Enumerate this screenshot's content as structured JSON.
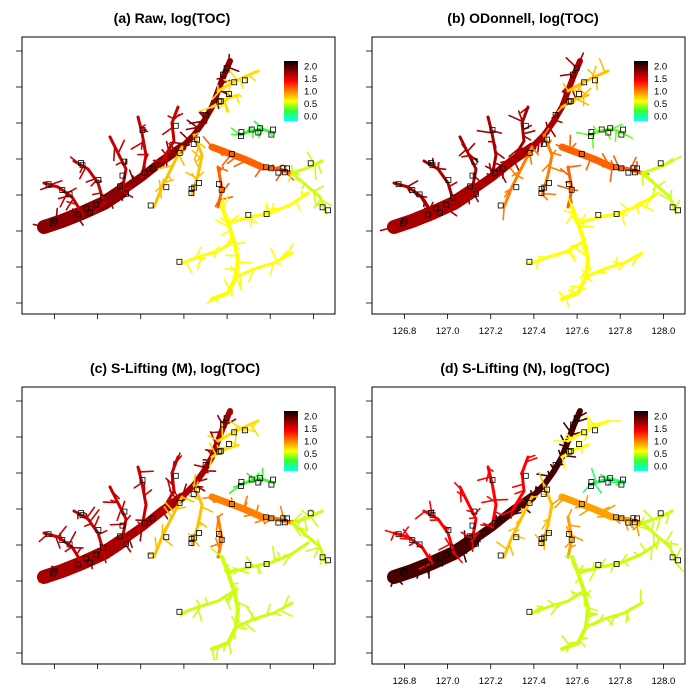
{
  "figure": {
    "colorscale": {
      "stops": [
        "#00FFFF",
        "#33FF33",
        "#FFFF00",
        "#FF8000",
        "#FF0000",
        "#8B0000",
        "#000000"
      ],
      "ticks": [
        "2.0",
        "1.5",
        "1.0",
        "0.5",
        "0.0"
      ],
      "range": [
        -0.2,
        2.2
      ]
    },
    "x_ticks": [
      "126.8",
      "127.0",
      "127.2",
      "127.4",
      "127.6",
      "127.8",
      "128.0"
    ],
    "marker_color": "#000000"
  },
  "chart_data": [
    {
      "type": "scatter",
      "title": "(a) Raw, log(TOC)",
      "xlim": [
        126.65,
        128.1
      ],
      "ylim": [
        36.2,
        37.45
      ],
      "x_axis_labels_shown": false,
      "grid": false,
      "legend_position": "top-right",
      "regions": [
        {
          "name": "",
          "value": 1.8
        },
        {
          "name": "",
          "value": 1.6
        },
        {
          "name": "",
          "value": 0.8
        },
        {
          "name": "",
          "value": 1.1
        },
        {
          "name": "",
          "value": 0.6
        },
        {
          "name": "",
          "value": 0.2
        },
        {
          "name": "",
          "value": 0.5
        },
        {
          "name": "",
          "value": 0.7
        }
      ]
    },
    {
      "type": "scatter",
      "title": "(b) ODonnell, log(TOC)",
      "xlim": [
        126.65,
        128.1
      ],
      "ylim": [
        36.2,
        37.45
      ],
      "x_axis_labels_shown": true,
      "grid": false,
      "legend_position": "top-right",
      "regions": [
        {
          "name": "",
          "value": 1.7
        },
        {
          "name": "",
          "value": 1.7
        },
        {
          "name": "",
          "value": 1.0
        },
        {
          "name": "",
          "value": 1.1
        },
        {
          "name": "",
          "value": 0.6
        },
        {
          "name": "",
          "value": 0.3
        },
        {
          "name": "",
          "value": 0.5
        },
        {
          "name": "",
          "value": 0.8
        }
      ]
    },
    {
      "type": "scatter",
      "title": "(c) S-Lifting (M), log(TOC)",
      "xlim": [
        126.65,
        128.1
      ],
      "ylim": [
        36.2,
        37.45
      ],
      "x_axis_labels_shown": false,
      "grid": false,
      "legend_position": "top-right",
      "regions": [
        {
          "name": "",
          "value": 1.7
        },
        {
          "name": "",
          "value": 1.6
        },
        {
          "name": "",
          "value": 0.8
        },
        {
          "name": "",
          "value": 1.0
        },
        {
          "name": "",
          "value": 0.5
        },
        {
          "name": "",
          "value": 0.2
        },
        {
          "name": "",
          "value": 0.5
        },
        {
          "name": "",
          "value": 0.7
        }
      ]
    },
    {
      "type": "scatter",
      "title": "(d) S-Lifting (N), log(TOC)",
      "xlim": [
        126.65,
        128.1
      ],
      "ylim": [
        36.2,
        37.45
      ],
      "x_axis_labels_shown": true,
      "grid": false,
      "legend_position": "top-right",
      "regions": [
        {
          "name": "",
          "value": 2.0
        },
        {
          "name": "",
          "value": 1.4
        },
        {
          "name": "",
          "value": 0.8
        },
        {
          "name": "",
          "value": 0.9
        },
        {
          "name": "",
          "value": 0.5
        },
        {
          "name": "",
          "value": 0.1
        },
        {
          "name": "",
          "value": 0.5
        },
        {
          "name": "",
          "value": 0.6
        }
      ]
    }
  ]
}
